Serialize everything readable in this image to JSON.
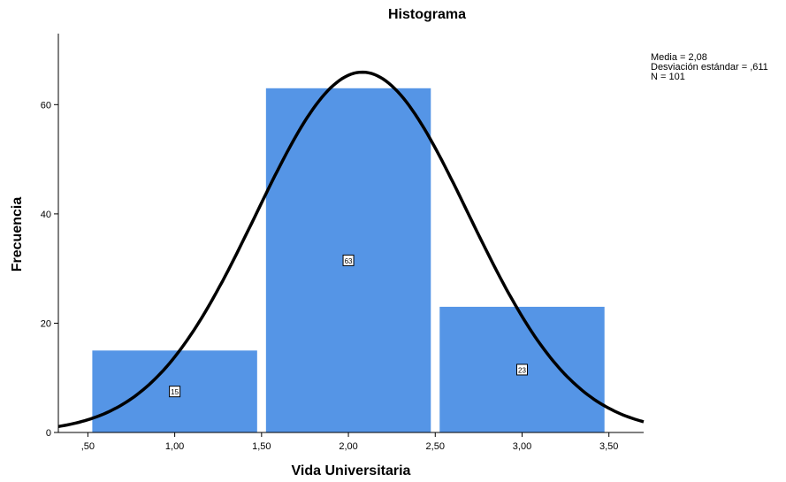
{
  "chart_data": {
    "type": "bar",
    "subtype": "histogram",
    "title": "Histograma",
    "xlabel": "Vida Universitaria",
    "ylabel": "Frecuencia",
    "bins": [
      {
        "from": 0.5,
        "to": 1.5,
        "value": 15,
        "label": "15"
      },
      {
        "from": 1.5,
        "to": 2.5,
        "value": 63,
        "label": "63"
      },
      {
        "from": 2.5,
        "to": 3.5,
        "value": 23,
        "label": "23"
      }
    ],
    "x_ticks": [
      {
        "value": 0.5,
        "label": ",50"
      },
      {
        "value": 1.0,
        "label": "1,00"
      },
      {
        "value": 1.5,
        "label": "1,50"
      },
      {
        "value": 2.0,
        "label": "2,00"
      },
      {
        "value": 2.5,
        "label": "2,50"
      },
      {
        "value": 3.0,
        "label": "3,00"
      },
      {
        "value": 3.5,
        "label": "3,50"
      }
    ],
    "y_ticks": [
      {
        "value": 0,
        "label": "0"
      },
      {
        "value": 20,
        "label": "20"
      },
      {
        "value": 40,
        "label": "40"
      },
      {
        "value": 60,
        "label": "60"
      }
    ],
    "xlim": [
      0.33,
      3.7
    ],
    "ylim": [
      0,
      73
    ],
    "normal_curve": {
      "mean": 2.08,
      "sd": 0.611,
      "n": 101,
      "bin_width": 1.0
    },
    "stats": {
      "mean_label": "Media = 2,08",
      "sd_label": "Desviación estándar = ,611",
      "n_label": "N = 101"
    },
    "colors": {
      "bar": "#5595e6",
      "curve": "#000000",
      "axis": "#000000"
    },
    "grid": false,
    "legend": "none"
  }
}
